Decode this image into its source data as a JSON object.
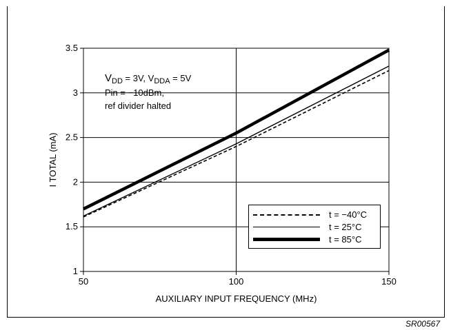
{
  "chart_data": {
    "type": "line",
    "title": "",
    "xlabel": "AUXILIARY INPUT FREQUENCY (MHz)",
    "ylabel": "I TOTAL (mA)",
    "xlim": [
      50,
      150
    ],
    "ylim": [
      1,
      3.5
    ],
    "x_ticks": [
      "50",
      "100",
      "150"
    ],
    "y_ticks": [
      "1",
      "1.5",
      "2",
      "2.5",
      "3",
      "3.5"
    ],
    "grid": true,
    "legend_position": "bottom-right",
    "series": [
      {
        "name": "t = −40°C",
        "style": "dashed",
        "x": [
          50,
          100,
          150
        ],
        "y": [
          1.61,
          2.4,
          3.25
        ]
      },
      {
        "name": "t = 25°C",
        "style": "solid-thin",
        "x": [
          50,
          100,
          150
        ],
        "y": [
          1.62,
          2.43,
          3.3
        ]
      },
      {
        "name": "t = 85°C",
        "style": "solid-thick",
        "x": [
          50,
          100,
          150
        ],
        "y": [
          1.7,
          2.55,
          3.48
        ]
      }
    ],
    "annotation": {
      "line1_a": "V",
      "line1_sub1": "DD",
      "line1_b": " = 3V, V",
      "line1_sub2": "DDA",
      "line1_c": " = 5V",
      "line2": "Pin = −10dBm,",
      "line3": "ref divider halted"
    }
  },
  "figure_code": "SR00567",
  "colors": {
    "line": "#000000",
    "background": "#ffffff",
    "grid": "#000000"
  }
}
